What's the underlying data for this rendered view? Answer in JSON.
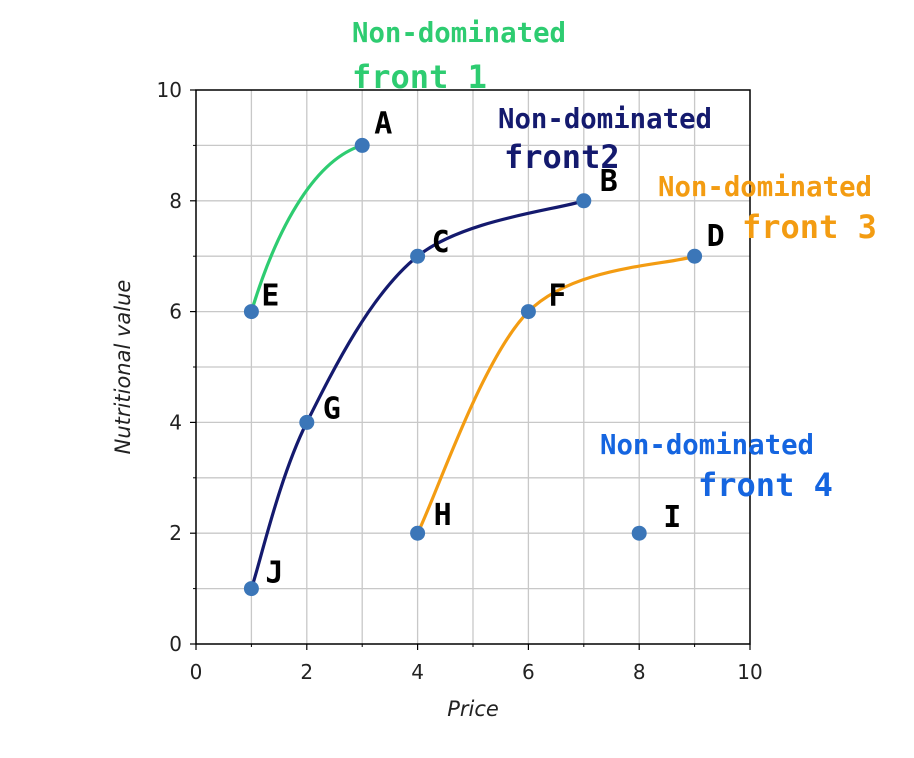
{
  "chart_data": {
    "type": "scatter",
    "xlabel": "Price",
    "ylabel": "Nutritional value",
    "xlim": [
      0,
      10
    ],
    "ylim": [
      0,
      10
    ],
    "x_ticks": [
      "0",
      "2",
      "4",
      "6",
      "8",
      "10"
    ],
    "y_ticks": [
      "0",
      "2",
      "4",
      "6",
      "8",
      "10"
    ],
    "grid": true,
    "point_color": "#3b76b8",
    "points": [
      {
        "label": "A",
        "x": 3,
        "y": 9
      },
      {
        "label": "B",
        "x": 7,
        "y": 8
      },
      {
        "label": "C",
        "x": 4,
        "y": 7
      },
      {
        "label": "D",
        "x": 9,
        "y": 7
      },
      {
        "label": "E",
        "x": 1,
        "y": 6
      },
      {
        "label": "F",
        "x": 6,
        "y": 6
      },
      {
        "label": "G",
        "x": 2,
        "y": 4
      },
      {
        "label": "H",
        "x": 4,
        "y": 2
      },
      {
        "label": "I",
        "x": 8,
        "y": 2
      },
      {
        "label": "J",
        "x": 1,
        "y": 1
      }
    ],
    "fronts": [
      {
        "name": "Non-dominated front 1",
        "line1": "Non-dominated",
        "line2": "front 1",
        "color": "#2ecc71",
        "members": [
          "E",
          "A"
        ]
      },
      {
        "name": "Non-dominated front2",
        "line1": "Non-dominated",
        "line2": "front2",
        "color": "#141a6e",
        "members": [
          "J",
          "G",
          "C",
          "B"
        ]
      },
      {
        "name": "Non-dominated front 3",
        "line1": "Non-dominated",
        "line2": "front 3",
        "color": "#f39c12",
        "members": [
          "H",
          "F",
          "D"
        ]
      },
      {
        "name": "Non-dominated front 4",
        "line1": "Non-dominated",
        "line2": "front 4",
        "color": "#1565e0",
        "members": [
          "I"
        ]
      }
    ]
  }
}
